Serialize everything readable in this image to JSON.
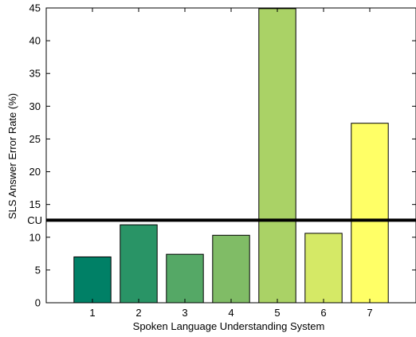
{
  "chart_data": {
    "type": "bar",
    "title": "",
    "xlabel": "Spoken Language Understanding System",
    "ylabel": "SLS Answer Error Rate (%)",
    "categories": [
      "1",
      "2",
      "3",
      "4",
      "5",
      "6",
      "7"
    ],
    "values": [
      7.0,
      11.9,
      7.4,
      10.3,
      44.9,
      10.6,
      27.4
    ],
    "colors": [
      "#008066",
      "#299466",
      "#55a866",
      "#80bc66",
      "#aad266",
      "#d5e966",
      "#ffff66"
    ],
    "ylim": [
      0,
      45
    ],
    "yticks": [
      0,
      5,
      10,
      15,
      20,
      25,
      30,
      35,
      40,
      45
    ],
    "xlim": [
      0,
      8
    ],
    "grid": false,
    "reference_line": {
      "label": "CU",
      "value": 12.6,
      "color": "#000000"
    }
  }
}
